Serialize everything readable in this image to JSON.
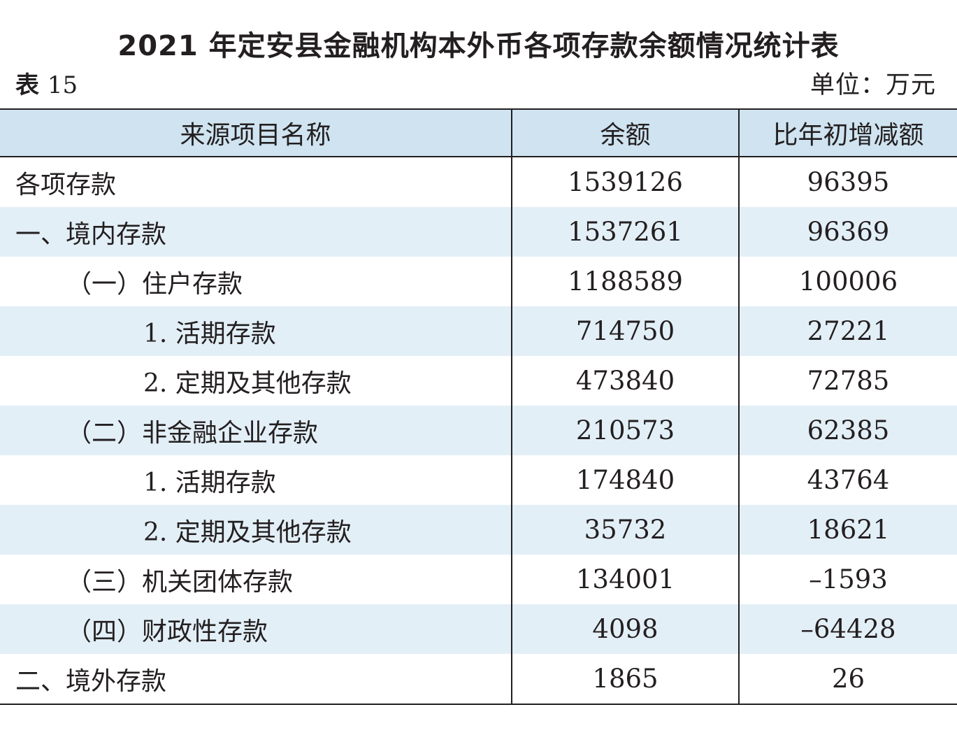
{
  "title": "2021 年定安县金融机构本外币各项存款余额情况统计表",
  "table_label": "表",
  "table_number": "15",
  "unit": "单位：万元",
  "columns": [
    "来源项目名称",
    "余额",
    "比年初增减额"
  ],
  "rows": [
    {
      "name": "各项存款",
      "level": 0,
      "balance": "1539126",
      "change": "96395"
    },
    {
      "name": "一、境内存款",
      "level": 0,
      "balance": "1537261",
      "change": "96369"
    },
    {
      "name": "（一）住户存款",
      "level": 1,
      "balance": "1188589",
      "change": "100006"
    },
    {
      "name": "1. 活期存款",
      "level": 2,
      "balance": "714750",
      "change": "27221"
    },
    {
      "name": "2. 定期及其他存款",
      "level": 2,
      "balance": "473840",
      "change": "72785"
    },
    {
      "name": "（二）非金融企业存款",
      "level": 1,
      "balance": "210573",
      "change": "62385"
    },
    {
      "name": "1. 活期存款",
      "level": 2,
      "balance": "174840",
      "change": "43764"
    },
    {
      "name": "2. 定期及其他存款",
      "level": 2,
      "balance": "35732",
      "change": "18621"
    },
    {
      "name": "（三）机关团体存款",
      "level": 1,
      "balance": "134001",
      "change": "–1593"
    },
    {
      "name": "（四）财政性存款",
      "level": 1,
      "balance": "4098",
      "change": "–64428"
    },
    {
      "name": "二、境外存款",
      "level": 0,
      "balance": "1865",
      "change": "26"
    }
  ],
  "colors": {
    "header_background": "#cfe3f0",
    "stripe_background": "#e3eff7",
    "rule": "#231f20",
    "text": "#231f20"
  }
}
